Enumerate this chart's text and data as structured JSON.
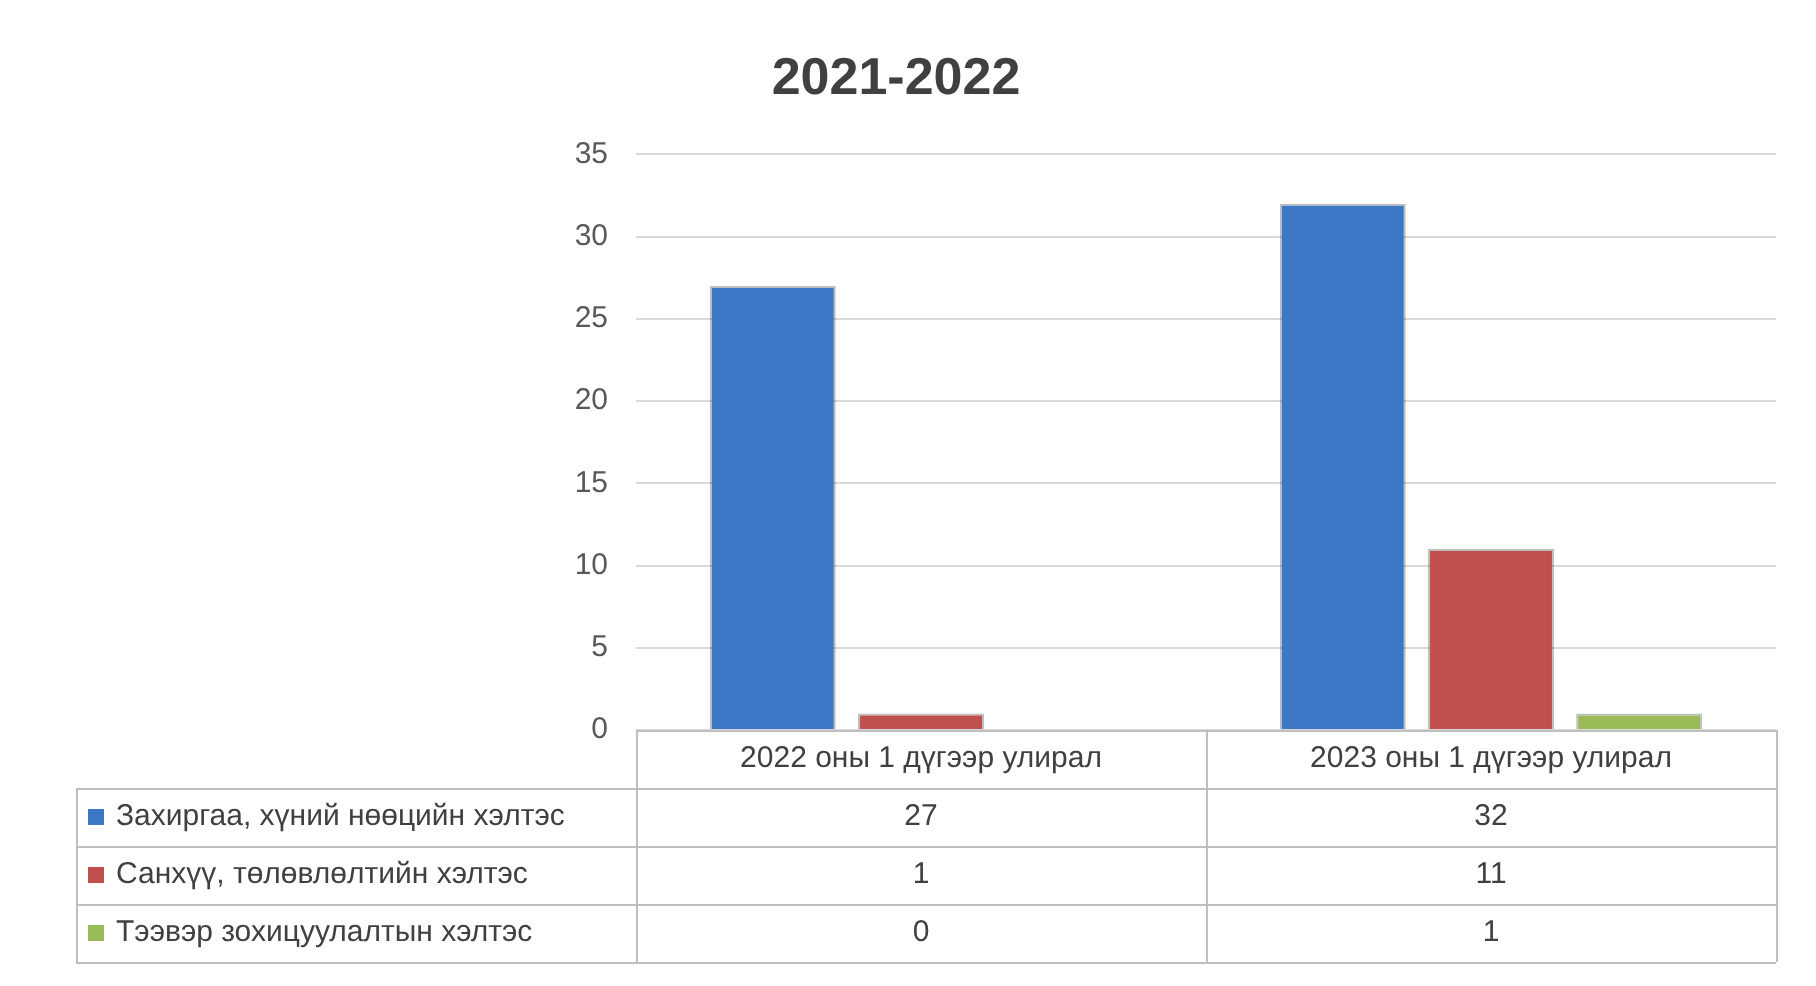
{
  "chart_data": {
    "type": "bar",
    "title": "2021-2022",
    "categories": [
      "2022 оны 1 дүгээр улирал",
      "2023 оны 1 дүгээр улирал"
    ],
    "series": [
      {
        "name": "Захиргаа, хүний нөөцийн хэлтэс",
        "color": "#3d78c6",
        "values": [
          27,
          32
        ]
      },
      {
        "name": "Санхүү, төлөвлөлтийн хэлтэс",
        "color": "#c0504d",
        "values": [
          1,
          11
        ]
      },
      {
        "name": "Тээвэр зохицуулалтын хэлтэс",
        "color": "#9bbb59",
        "values": [
          0,
          1
        ]
      }
    ],
    "ylim": [
      0,
      35
    ],
    "yticks": [
      0,
      5,
      10,
      15,
      20,
      25,
      30,
      35
    ],
    "grid": "y",
    "legend": "bottom",
    "data_labels": true
  }
}
